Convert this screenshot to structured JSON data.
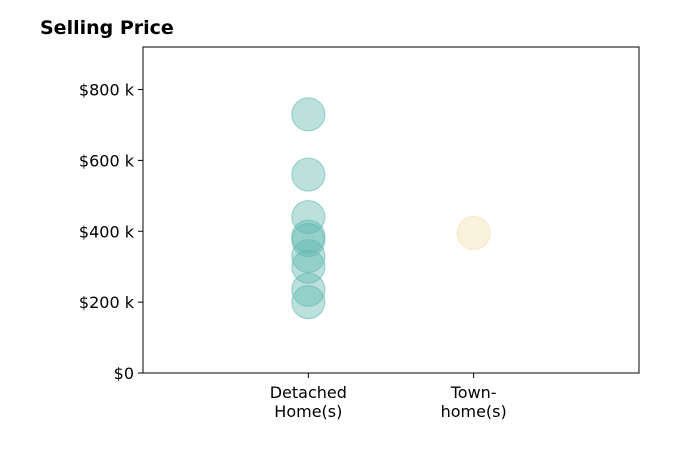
{
  "chart_data": {
    "type": "scatter",
    "title": "Selling Price",
    "xlabel": "",
    "ylabel": "",
    "categories": [
      [
        "Detached",
        "Home(s)"
      ],
      [
        "Town-",
        "home(s)"
      ]
    ],
    "y_ticks": [
      {
        "value": 0,
        "label": "$0"
      },
      {
        "value": 200000,
        "label": "$200 k"
      },
      {
        "value": 400000,
        "label": "$400 k"
      },
      {
        "value": 600000,
        "label": "$600 k"
      },
      {
        "value": 800000,
        "label": "$800 k"
      }
    ],
    "ylim": [
      0,
      920000
    ],
    "xlim": [
      -1,
      2
    ],
    "grid": false,
    "series": [
      {
        "category_index": 0,
        "color": "#5fb8ae",
        "values": [
          730000,
          560000,
          440000,
          385000,
          375000,
          330000,
          300000,
          235000,
          200000
        ]
      },
      {
        "category_index": 1,
        "color": "#f3dfae",
        "values": [
          395000
        ]
      }
    ]
  }
}
